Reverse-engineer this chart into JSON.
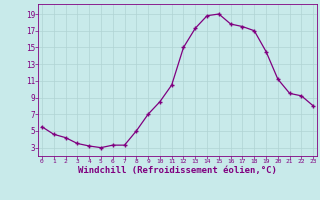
{
  "x": [
    0,
    1,
    2,
    3,
    4,
    5,
    6,
    7,
    8,
    9,
    10,
    11,
    12,
    13,
    14,
    15,
    16,
    17,
    18,
    19,
    20,
    21,
    22,
    23
  ],
  "y": [
    5.5,
    4.6,
    4.2,
    3.5,
    3.2,
    3.0,
    3.3,
    3.3,
    5.0,
    7.0,
    8.5,
    10.5,
    15.0,
    17.3,
    18.8,
    19.0,
    17.8,
    17.5,
    17.0,
    14.5,
    11.2,
    9.5,
    9.2,
    8.0
  ],
  "line_color": "#800080",
  "marker": "+",
  "markersize": 3,
  "markeredgewidth": 1.0,
  "linewidth": 0.9,
  "xlabel": "Windchill (Refroidissement éolien,°C)",
  "xlabel_fontsize": 6.5,
  "bg_color": "#c8eaea",
  "grid_color": "#b0d4d4",
  "tick_color": "#800080",
  "yticks": [
    3,
    5,
    7,
    9,
    11,
    13,
    15,
    17,
    19
  ],
  "xticks": [
    0,
    1,
    2,
    3,
    4,
    5,
    6,
    7,
    8,
    9,
    10,
    11,
    12,
    13,
    14,
    15,
    16,
    17,
    18,
    19,
    20,
    21,
    22,
    23
  ],
  "ylim": [
    2.0,
    20.2
  ],
  "xlim": [
    -0.3,
    23.3
  ]
}
